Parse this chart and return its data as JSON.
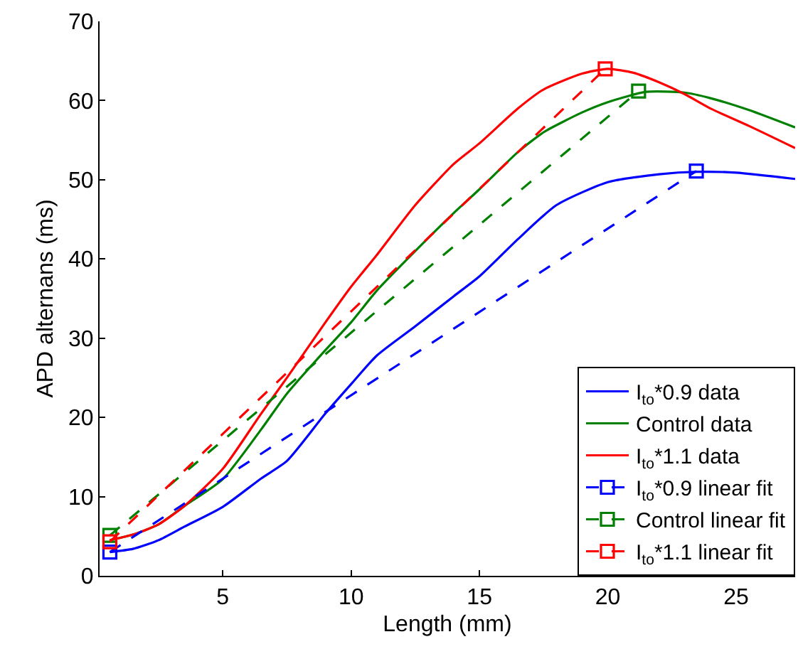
{
  "chart_data": {
    "type": "line",
    "xlabel": "Length (mm)",
    "ylabel": "APD alternans (ms)",
    "xlim": [
      0.2,
      27.3
    ],
    "ylim": [
      0,
      70
    ],
    "xticks": [
      5,
      10,
      15,
      20,
      25
    ],
    "yticks": [
      0,
      10,
      20,
      30,
      40,
      50,
      60,
      70
    ],
    "legend": "bottom right",
    "marker": "none",
    "line_style": "solid",
    "series": [
      {
        "name": "I$_{to}$*0.9 data",
        "color": "#0000ff",
        "x": [
          0.6,
          1.5,
          2.5,
          3.5,
          5,
          6.5,
          7.5,
          9,
          10,
          11,
          12.5,
          14,
          15,
          16.5,
          18,
          20,
          22,
          23.5,
          25,
          27.3
        ],
        "values": [
          3,
          3.4,
          4.5,
          6.2,
          8.7,
          12.3,
          14.5,
          20.5,
          24.2,
          27.8,
          31.5,
          35.3,
          37.8,
          42.5,
          46.8,
          49.7,
          50.7,
          51,
          50.9,
          50.1
        ]
      },
      {
        "name": "Control data",
        "color": "#008000",
        "x": [
          0.6,
          1.5,
          2.5,
          3.5,
          5,
          6.5,
          7.5,
          9,
          10,
          11,
          12.5,
          14,
          15,
          16.5,
          17.5,
          19,
          20,
          21.5,
          23,
          24,
          25.5,
          27.3
        ],
        "values": [
          4.5,
          5.2,
          6.5,
          8.8,
          12.2,
          18.5,
          23,
          28.5,
          32,
          36,
          41,
          45.8,
          48.8,
          53.5,
          56,
          58.5,
          59.8,
          61.1,
          61,
          60.3,
          58.8,
          56.6
        ]
      },
      {
        "name": "I$_{to}$*1.1 data",
        "color": "#ff0000",
        "x": [
          0.6,
          1.5,
          2.5,
          3.5,
          5,
          6.5,
          7.5,
          9,
          10,
          11,
          12.5,
          14,
          15,
          16.5,
          17.5,
          19,
          20,
          21,
          22,
          23,
          24,
          25.5,
          27.3
        ],
        "values": [
          4.5,
          5.2,
          6.5,
          8.8,
          13.5,
          20.5,
          25,
          32,
          36.5,
          40.5,
          46.8,
          52,
          54.6,
          59,
          61.4,
          63.4,
          64,
          63.5,
          62.3,
          60.8,
          59,
          56.8,
          54
        ]
      },
      {
        "name": "I$_{to}$*0.9 linear fit",
        "color": "#0000ff",
        "x": [
          0.6,
          23.45
        ],
        "values": [
          3,
          51.1
        ],
        "marker": "square",
        "line_style": "dashed"
      },
      {
        "name": "Control linear fit",
        "color": "#008000",
        "x": [
          0.6,
          21.2
        ],
        "values": [
          5.1,
          61.2
        ],
        "marker": "square",
        "line_style": "dashed"
      },
      {
        "name": "I$_{to}$*1.1 linear fit",
        "color": "#ff0000",
        "x": [
          0.6,
          19.9
        ],
        "values": [
          4.3,
          64
        ],
        "marker": "square",
        "line_style": "dashed"
      }
    ]
  }
}
